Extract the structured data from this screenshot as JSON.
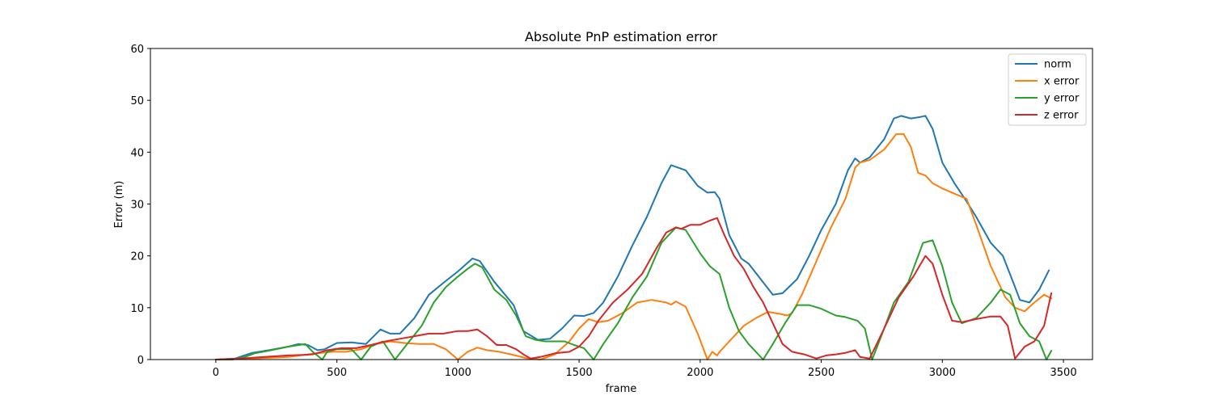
{
  "chart_data": {
    "type": "line",
    "title": "Absolute PnP estimation error",
    "xlabel": "frame",
    "ylabel": "Error (m)",
    "xlim": [
      -270,
      3620
    ],
    "ylim": [
      0,
      60
    ],
    "xticks": [
      0,
      500,
      1000,
      1500,
      2000,
      2500,
      3000,
      3500
    ],
    "yticks": [
      0,
      10,
      20,
      30,
      40,
      50,
      60
    ],
    "legend_position": "top-right",
    "series": [
      {
        "name": "norm",
        "color": "#1f77b4",
        "x": [
          0,
          80,
          150,
          220,
          300,
          340,
          380,
          420,
          450,
          500,
          560,
          620,
          680,
          720,
          760,
          820,
          880,
          940,
          1000,
          1060,
          1090,
          1150,
          1230,
          1270,
          1330,
          1380,
          1430,
          1480,
          1520,
          1560,
          1600,
          1660,
          1720,
          1780,
          1840,
          1880,
          1910,
          1940,
          1990,
          2030,
          2060,
          2080,
          2120,
          2170,
          2200,
          2250,
          2300,
          2340,
          2400,
          2450,
          2500,
          2560,
          2610,
          2640,
          2660,
          2700,
          2760,
          2800,
          2830,
          2870,
          2910,
          2930,
          2960,
          3000,
          3050,
          3100,
          3140,
          3200,
          3250,
          3300,
          3320,
          3360,
          3400,
          3440
        ],
        "values": [
          0,
          0.2,
          1.3,
          1.8,
          2.5,
          3.0,
          2.8,
          1.8,
          2.0,
          3.2,
          3.3,
          3.0,
          5.8,
          5.0,
          5.0,
          8.0,
          12.5,
          14.8,
          17.0,
          19.5,
          19.0,
          15.0,
          10.5,
          5.5,
          3.8,
          4.0,
          6.0,
          8.5,
          8.4,
          9.0,
          11.0,
          16.0,
          22.0,
          27.5,
          34.0,
          37.5,
          37.0,
          36.5,
          33.5,
          32.2,
          32.3,
          31.0,
          24.0,
          19.5,
          18.5,
          15.5,
          12.5,
          12.8,
          15.5,
          20.0,
          25.0,
          30.0,
          36.5,
          38.8,
          38.0,
          39.0,
          42.5,
          46.5,
          47.0,
          46.5,
          46.8,
          47.0,
          44.5,
          38.0,
          34.0,
          30.5,
          27.5,
          22.5,
          20.0,
          14.0,
          11.5,
          11.0,
          13.5,
          17.2
        ]
      },
      {
        "name": "x error",
        "color": "#ff7f0e",
        "x": [
          0,
          100,
          200,
          300,
          380,
          420,
          480,
          540,
          600,
          660,
          720,
          780,
          840,
          900,
          950,
          1000,
          1040,
          1080,
          1120,
          1170,
          1220,
          1280,
          1340,
          1400,
          1460,
          1500,
          1540,
          1580,
          1620,
          1680,
          1740,
          1800,
          1860,
          1880,
          1900,
          1940,
          1990,
          2030,
          2050,
          2070,
          2080,
          2100,
          2140,
          2180,
          2230,
          2280,
          2330,
          2360,
          2380,
          2420,
          2480,
          2540,
          2600,
          2640,
          2660,
          2700,
          2760,
          2810,
          2840,
          2870,
          2900,
          2930,
          2960,
          3000,
          3050,
          3100,
          3140,
          3200,
          3260,
          3300,
          3340,
          3380,
          3420,
          3450
        ],
        "values": [
          0,
          0.1,
          0.3,
          0.5,
          1.0,
          1.2,
          1.5,
          1.5,
          2.0,
          3.0,
          3.5,
          3.2,
          3.0,
          3.0,
          2.0,
          0,
          1.5,
          2.3,
          1.8,
          1.5,
          1.0,
          0.3,
          0,
          1.0,
          3.5,
          6.0,
          7.8,
          7.2,
          7.5,
          9.0,
          11.0,
          11.5,
          11.0,
          10.6,
          11.2,
          10.2,
          5.0,
          0,
          1.5,
          0.8,
          1.5,
          2.5,
          4.5,
          6.5,
          8.0,
          9.2,
          8.8,
          8.5,
          9.0,
          12.5,
          19.0,
          25.5,
          31.0,
          37.0,
          38.0,
          38.5,
          40.5,
          43.5,
          43.5,
          41.0,
          36.0,
          35.5,
          34.0,
          33.0,
          32.0,
          31.0,
          26.0,
          18.0,
          12.0,
          10.0,
          9.3,
          11.0,
          12.5,
          11.8
        ]
      },
      {
        "name": "y error",
        "color": "#2ca02c",
        "x": [
          0,
          70,
          120,
          160,
          230,
          300,
          370,
          400,
          440,
          460,
          500,
          560,
          600,
          640,
          690,
          740,
          790,
          850,
          900,
          950,
          1000,
          1040,
          1070,
          1100,
          1150,
          1200,
          1240,
          1280,
          1320,
          1360,
          1400,
          1440,
          1480,
          1520,
          1560,
          1600,
          1660,
          1720,
          1780,
          1840,
          1900,
          1940,
          2000,
          2040,
          2080,
          2120,
          2160,
          2200,
          2260,
          2300,
          2350,
          2400,
          2450,
          2500,
          2560,
          2600,
          2650,
          2680,
          2710,
          2760,
          2800,
          2860,
          2920,
          2960,
          3000,
          3040,
          3080,
          3140,
          3200,
          3240,
          3280,
          3320,
          3360,
          3400,
          3430,
          3450
        ],
        "values": [
          0,
          0,
          0.5,
          1.2,
          1.8,
          2.5,
          3.0,
          1.5,
          0,
          1.5,
          2.0,
          2.0,
          0,
          2.5,
          3.5,
          0,
          3.0,
          6.5,
          11.0,
          14.0,
          16.0,
          17.5,
          18.5,
          17.8,
          13.5,
          11.5,
          8.5,
          4.5,
          3.8,
          3.5,
          3.5,
          3.5,
          2.8,
          2.2,
          0,
          3.0,
          7.0,
          12.0,
          16.0,
          22.5,
          25.5,
          25.0,
          20.5,
          18.0,
          16.5,
          10.0,
          5.5,
          3.0,
          0,
          3.0,
          7.0,
          10.5,
          10.5,
          9.8,
          8.5,
          8.2,
          7.5,
          6.0,
          0,
          6.0,
          11.0,
          15.0,
          22.5,
          23.0,
          18.0,
          11.0,
          7.0,
          8.0,
          11.0,
          13.5,
          12.5,
          7.0,
          4.5,
          3.5,
          0,
          1.7
        ]
      },
      {
        "name": "z error",
        "color": "#d62728",
        "x": [
          0,
          100,
          200,
          300,
          360,
          400,
          460,
          520,
          580,
          640,
          700,
          760,
          820,
          880,
          940,
          1000,
          1040,
          1080,
          1120,
          1160,
          1200,
          1240,
          1270,
          1300,
          1340,
          1400,
          1460,
          1500,
          1540,
          1580,
          1640,
          1700,
          1760,
          1820,
          1860,
          1880,
          1900,
          1920,
          1960,
          2000,
          2040,
          2070,
          2100,
          2140,
          2180,
          2220,
          2260,
          2300,
          2340,
          2380,
          2430,
          2480,
          2520,
          2560,
          2600,
          2640,
          2660,
          2700,
          2760,
          2820,
          2880,
          2930,
          2960,
          3000,
          3040,
          3080,
          3140,
          3200,
          3240,
          3270,
          3300,
          3340,
          3380,
          3420,
          3450
        ],
        "values": [
          0,
          0.2,
          0.5,
          0.8,
          0.9,
          1.0,
          1.8,
          2.2,
          2.2,
          2.8,
          3.5,
          4.0,
          4.5,
          5.0,
          5.0,
          5.5,
          5.5,
          5.8,
          4.5,
          2.8,
          2.8,
          2.0,
          1.0,
          0.2,
          0.5,
          1.2,
          1.5,
          2.5,
          4.5,
          7.5,
          11.0,
          13.5,
          16.5,
          21.5,
          24.5,
          25.0,
          25.5,
          25.2,
          26.0,
          26.0,
          26.8,
          27.3,
          24.0,
          20.0,
          17.5,
          14.0,
          11.0,
          7.0,
          3.0,
          1.5,
          1.0,
          0.2,
          0.8,
          1.0,
          1.3,
          1.8,
          0.5,
          0.2,
          6.0,
          12.0,
          16.0,
          20.0,
          18.5,
          12.5,
          7.5,
          7.2,
          7.8,
          8.3,
          8.3,
          6.5,
          0.2,
          2.5,
          3.5,
          6.5,
          12.8
        ]
      }
    ]
  }
}
